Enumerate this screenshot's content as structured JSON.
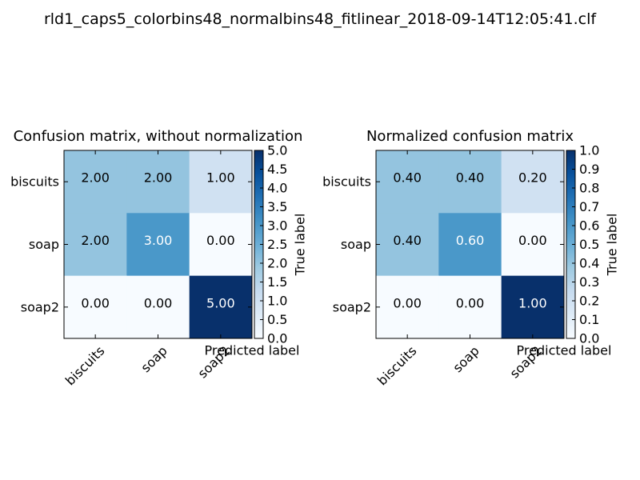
{
  "figure": {
    "suptitle": "rld1_caps5_colorbins48_normalbins48_fitlinear_2018-09-14T12:05:41.clf"
  },
  "chart_data": [
    {
      "type": "heatmap",
      "title": "Confusion matrix, without normalization",
      "xlabel": "Predicted label",
      "ylabel": "True label",
      "x_categories": [
        "biscuits",
        "soap",
        "soap2"
      ],
      "y_categories": [
        "biscuits",
        "soap",
        "soap2"
      ],
      "values": [
        [
          2,
          2,
          1
        ],
        [
          2,
          3,
          0
        ],
        [
          0,
          0,
          5
        ]
      ],
      "value_labels": [
        [
          "2.00",
          "2.00",
          "1.00"
        ],
        [
          "2.00",
          "3.00",
          "0.00"
        ],
        [
          "0.00",
          "0.00",
          "5.00"
        ]
      ],
      "colormap": "Blues",
      "vmin": 0,
      "vmax": 5,
      "colorbar_ticks": [
        "0.0",
        "0.5",
        "1.0",
        "1.5",
        "2.0",
        "2.5",
        "3.0",
        "3.5",
        "4.0",
        "4.5",
        "5.0"
      ],
      "grid": false
    },
    {
      "type": "heatmap",
      "title": "Normalized confusion matrix",
      "xlabel": "Predicted label",
      "ylabel": "True label",
      "x_categories": [
        "biscuits",
        "soap",
        "soap2"
      ],
      "y_categories": [
        "biscuits",
        "soap",
        "soap2"
      ],
      "values": [
        [
          0.4,
          0.4,
          0.2
        ],
        [
          0.4,
          0.6,
          0.0
        ],
        [
          0.0,
          0.0,
          1.0
        ]
      ],
      "value_labels": [
        [
          "0.40",
          "0.40",
          "0.20"
        ],
        [
          "0.40",
          "0.60",
          "0.00"
        ],
        [
          "0.00",
          "0.00",
          "1.00"
        ]
      ],
      "colormap": "Blues",
      "vmin": 0,
      "vmax": 1,
      "colorbar_ticks": [
        "0.0",
        "0.1",
        "0.2",
        "0.3",
        "0.4",
        "0.5",
        "0.6",
        "0.7",
        "0.8",
        "0.9",
        "1.0"
      ],
      "grid": false
    }
  ],
  "colors": {
    "blues": [
      "#f7fbff",
      "#deebf7",
      "#c6dbef",
      "#9ecae1",
      "#6baed6",
      "#4292c6",
      "#2171b5",
      "#08519c",
      "#08306b"
    ],
    "text_dark": "#000000",
    "text_light": "#ffffff"
  }
}
